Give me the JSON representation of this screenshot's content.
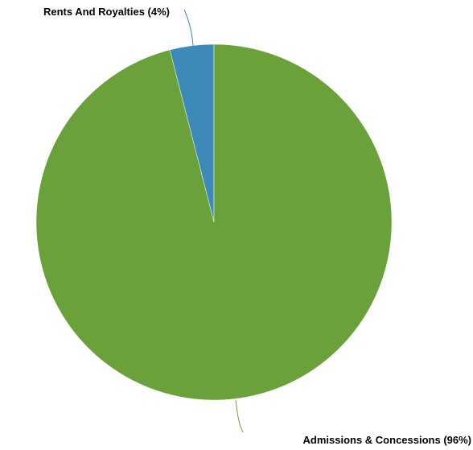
{
  "chart_data": {
    "type": "pie",
    "slices": [
      {
        "label": "Rents And Royalties (4%)",
        "value": 4,
        "color": "#3d8ab8"
      },
      {
        "label": "Admissions & Concessions (96%)",
        "value": 96,
        "color": "#6aa13a"
      }
    ],
    "start_angle_deg": 0,
    "direction": "counter-clockwise",
    "legend": "none",
    "labels": "outside-with-leader-lines"
  }
}
